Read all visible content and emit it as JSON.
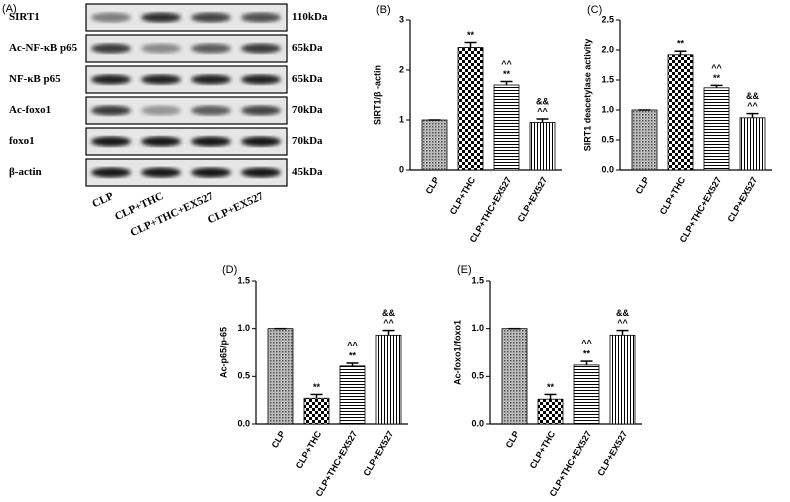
{
  "blot": {
    "panel_label": "(A)",
    "rows": [
      {
        "protein": "SIRT1",
        "size": "110kDa"
      },
      {
        "protein": "Ac-NF-κB p65",
        "size": "65kDa"
      },
      {
        "protein": "NF-κB p65",
        "size": "65kDa"
      },
      {
        "protein": "Ac-foxo1",
        "size": "70kDa"
      },
      {
        "protein": "foxo1",
        "size": "70kDa"
      },
      {
        "protein": "β-actin",
        "size": "45kDa"
      }
    ],
    "lanes": [
      "CLP",
      "CLP+THC",
      "CLP+THC+EX527",
      "CLP+EX527"
    ]
  },
  "chart_data": [
    {
      "type": "bar",
      "panel_label": "(B)",
      "y_label": "SIRT1/β -actin",
      "color": "#000000",
      "categories": [
        "CLP",
        "CLP+THC",
        "CLP+THC+EX527",
        "CLP+EX527"
      ],
      "values": [
        1.0,
        2.45,
        1.7,
        0.95
      ],
      "errors": [
        0.0,
        0.1,
        0.07,
        0.07
      ],
      "annotations": [
        [],
        [
          "**"
        ],
        [
          "^^",
          "**"
        ],
        [
          "&&",
          "^^"
        ]
      ],
      "ylim": [
        0,
        3
      ],
      "yticks": [
        0,
        1,
        2,
        3
      ]
    },
    {
      "type": "bar",
      "panel_label": "(C)",
      "y_label": "SIRT1 deacetylase activity",
      "color": "#000000",
      "categories": [
        "CLP",
        "CLP+THC",
        "CLP+THC+EX527",
        "CLP+EX527"
      ],
      "values": [
        1.0,
        1.92,
        1.37,
        0.87
      ],
      "errors": [
        0.0,
        0.06,
        0.04,
        0.07
      ],
      "annotations": [
        [],
        [
          "**"
        ],
        [
          "^^",
          "**"
        ],
        [
          "&&",
          "^^"
        ]
      ],
      "ylim": [
        0,
        2.5
      ],
      "yticks": [
        {
          "value": 0,
          "label": "0.0"
        },
        0.5,
        {
          "value": 1,
          "label": "1.0"
        },
        1.5,
        {
          "value": 2,
          "label": "2.0"
        },
        2.5
      ]
    },
    {
      "type": "bar",
      "panel_label": "(D)",
      "y_label": "Ac-p65/p-65",
      "color": "#000000",
      "categories": [
        "CLP",
        "CLP+THC",
        "CLP+THC+EX527",
        "CLP+EX527"
      ],
      "values": [
        1.0,
        0.27,
        0.61,
        0.93
      ],
      "errors": [
        0.0,
        0.04,
        0.03,
        0.05
      ],
      "annotations": [
        [],
        [
          "**"
        ],
        [
          "^^",
          "**"
        ],
        [
          "&&",
          "^^"
        ]
      ],
      "ylim": [
        0,
        1.5
      ],
      "yticks": [
        {
          "value": 0,
          "label": "0.0"
        },
        0.5,
        {
          "value": 1,
          "label": "1.0"
        },
        1.5
      ]
    },
    {
      "type": "bar",
      "panel_label": "(E)",
      "y_label": "Ac-foxo1/foxo1",
      "color": "#000000",
      "categories": [
        "CLP",
        "CLP+THC",
        "CLP+THC+EX527",
        "CLP+EX527"
      ],
      "values": [
        1.0,
        0.26,
        0.62,
        0.93
      ],
      "errors": [
        0.0,
        0.05,
        0.04,
        0.05
      ],
      "annotations": [
        [],
        [
          "**"
        ],
        [
          "^^",
          "**"
        ],
        [
          "&&",
          "^^"
        ]
      ],
      "ylim": [
        0,
        1.5
      ],
      "yticks": [
        {
          "value": 0,
          "label": "0.0"
        },
        0.5,
        {
          "value": 1,
          "label": "1.0"
        },
        1.5
      ]
    }
  ]
}
